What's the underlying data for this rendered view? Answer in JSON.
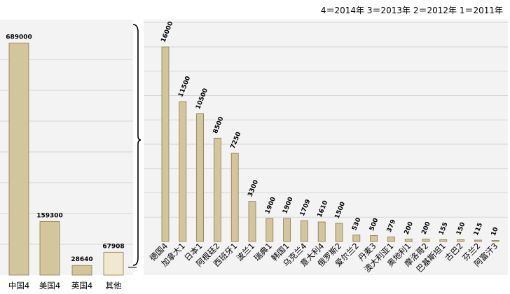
{
  "legend": "4＝2014年  3＝2013年  2＝2012年  1＝2011年",
  "colors": {
    "bar_fill": "#d3c69c",
    "bar_stroke": "#8a7a4e",
    "other_fill": "#f1e9cf",
    "grid": "#d6d6d6",
    "panel_bg": "#f3f3f3"
  },
  "chart_data": [
    {
      "type": "bar",
      "categories": [
        "中国4",
        "美国4",
        "英国4",
        "其他"
      ],
      "values": [
        689000,
        159300,
        28640,
        67908
      ],
      "value_labels": [
        "689000",
        "159300",
        "28640",
        "67908"
      ],
      "ylim": [
        0,
        800000
      ],
      "grid": true
    },
    {
      "type": "bar",
      "categories": [
        "德国4",
        "加拿大1",
        "日本1",
        "阿根廷2",
        "西班牙1",
        "波兰1",
        "瑞典1",
        "韩国1",
        "乌克兰4",
        "意大利4",
        "俄罗斯2",
        "爱尔兰2",
        "丹麦3",
        "澳大利亚1",
        "奥地利1",
        "摩洛哥2",
        "巴基斯坦1",
        "古巴2",
        "芬兰2",
        "阿富汗3"
      ],
      "values": [
        16000,
        11500,
        10500,
        8500,
        7250,
        3300,
        1900,
        1900,
        1709,
        1610,
        1500,
        530,
        500,
        379,
        200,
        200,
        155,
        150,
        115,
        10
      ],
      "value_labels": [
        "16000",
        "11500",
        "10500",
        "8500",
        "7250",
        "3300",
        "1900",
        "1900",
        "1709",
        "1610",
        "1500",
        "530",
        "500",
        "379",
        "200",
        "200",
        "155",
        "150",
        "115",
        "10"
      ],
      "ylim": [
        0,
        18000
      ],
      "grid": true
    }
  ]
}
